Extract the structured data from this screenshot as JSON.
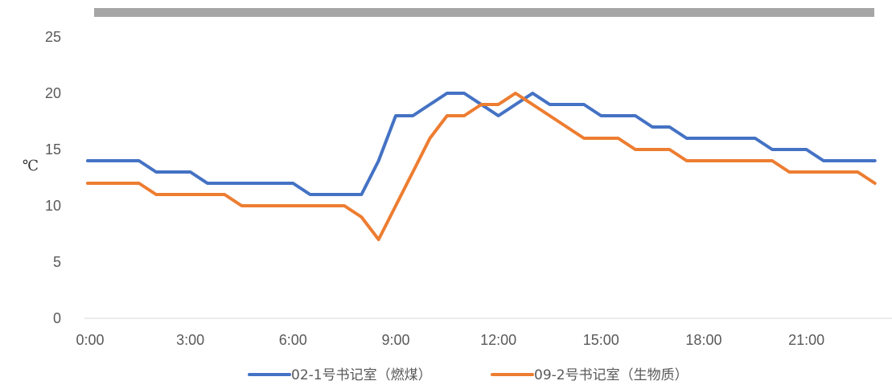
{
  "chart_data": {
    "type": "line",
    "title": "",
    "xlabel": "",
    "ylabel": "℃",
    "ylim": [
      0,
      25
    ],
    "yticks": [
      "0",
      "5",
      "10",
      "15",
      "20",
      "25"
    ],
    "xticks": [
      "0:00",
      "3:00",
      "6:00",
      "9:00",
      "12:00",
      "15:00",
      "18:00",
      "21:00"
    ],
    "x_hours": [
      0,
      0.5,
      1,
      1.5,
      2,
      2.5,
      3,
      3.5,
      4,
      4.5,
      5,
      5.5,
      6,
      6.5,
      7,
      7.5,
      8,
      8.5,
      9,
      9.5,
      10,
      10.5,
      11,
      11.5,
      12,
      12.5,
      13,
      13.5,
      14,
      14.5,
      15,
      15.5,
      16,
      16.5,
      17,
      17.5,
      18,
      18.5,
      19,
      19.5,
      20,
      20.5,
      21,
      21.5,
      22,
      22.5,
      23
    ],
    "grid": false,
    "legend_position": "bottom",
    "series": [
      {
        "name": "02-1号书记室（燃煤）",
        "color": "#4472C4",
        "values": [
          14,
          14,
          14,
          14,
          13,
          13,
          13,
          12,
          12,
          12,
          12,
          12,
          12,
          11,
          11,
          11,
          11,
          14,
          18,
          18,
          19,
          20,
          20,
          19,
          18,
          19,
          20,
          19,
          19,
          19,
          18,
          18,
          18,
          17,
          17,
          16,
          16,
          16,
          16,
          16,
          15,
          15,
          15,
          14,
          14,
          14,
          14
        ]
      },
      {
        "name": "09-2号书记室（生物质）",
        "color": "#ED7D31",
        "values": [
          12,
          12,
          12,
          12,
          11,
          11,
          11,
          11,
          11,
          10,
          10,
          10,
          10,
          10,
          10,
          10,
          9,
          7,
          10,
          13,
          16,
          18,
          18,
          19,
          19,
          20,
          19,
          18,
          17,
          16,
          16,
          16,
          15,
          15,
          15,
          14,
          14,
          14,
          14,
          14,
          14,
          13,
          13,
          13,
          13,
          13,
          12
        ]
      }
    ],
    "top_bar_color": "#A6A6A6"
  }
}
